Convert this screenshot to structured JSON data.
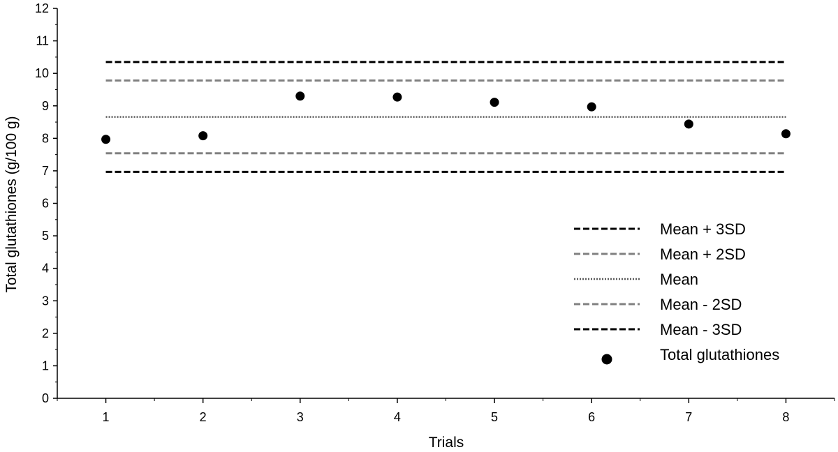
{
  "chart_data": {
    "type": "scatter",
    "xlabel": "Trials",
    "ylabel": "Total glutathiones (g/100 g)",
    "xlim": [
      0.5,
      8.5
    ],
    "ylim": [
      0,
      12
    ],
    "x_ticks": [
      1,
      2,
      3,
      4,
      5,
      6,
      7,
      8
    ],
    "y_ticks": [
      0,
      1,
      2,
      3,
      4,
      5,
      6,
      7,
      8,
      9,
      10,
      11,
      12
    ],
    "grid": false,
    "legend_position": "bottom-right",
    "series": [
      {
        "name": "Total glutathiones",
        "kind": "points",
        "x": [
          1,
          2,
          3,
          4,
          5,
          6,
          7,
          8
        ],
        "y": [
          7.97,
          8.08,
          9.3,
          9.27,
          9.11,
          8.97,
          8.44,
          8.14
        ],
        "color": "#000000"
      }
    ],
    "reference_lines": [
      {
        "name": "Mean + 3SD",
        "y": 10.35,
        "color": "#000000",
        "style": "dashed"
      },
      {
        "name": "Mean + 2SD",
        "y": 9.78,
        "color": "#808080",
        "style": "dashed"
      },
      {
        "name": "Mean",
        "y": 8.66,
        "color": "#595959",
        "style": "dotted"
      },
      {
        "name": "Mean - 2SD",
        "y": 7.54,
        "color": "#808080",
        "style": "dashed"
      },
      {
        "name": "Mean - 3SD",
        "y": 6.97,
        "color": "#000000",
        "style": "dashed"
      }
    ]
  }
}
